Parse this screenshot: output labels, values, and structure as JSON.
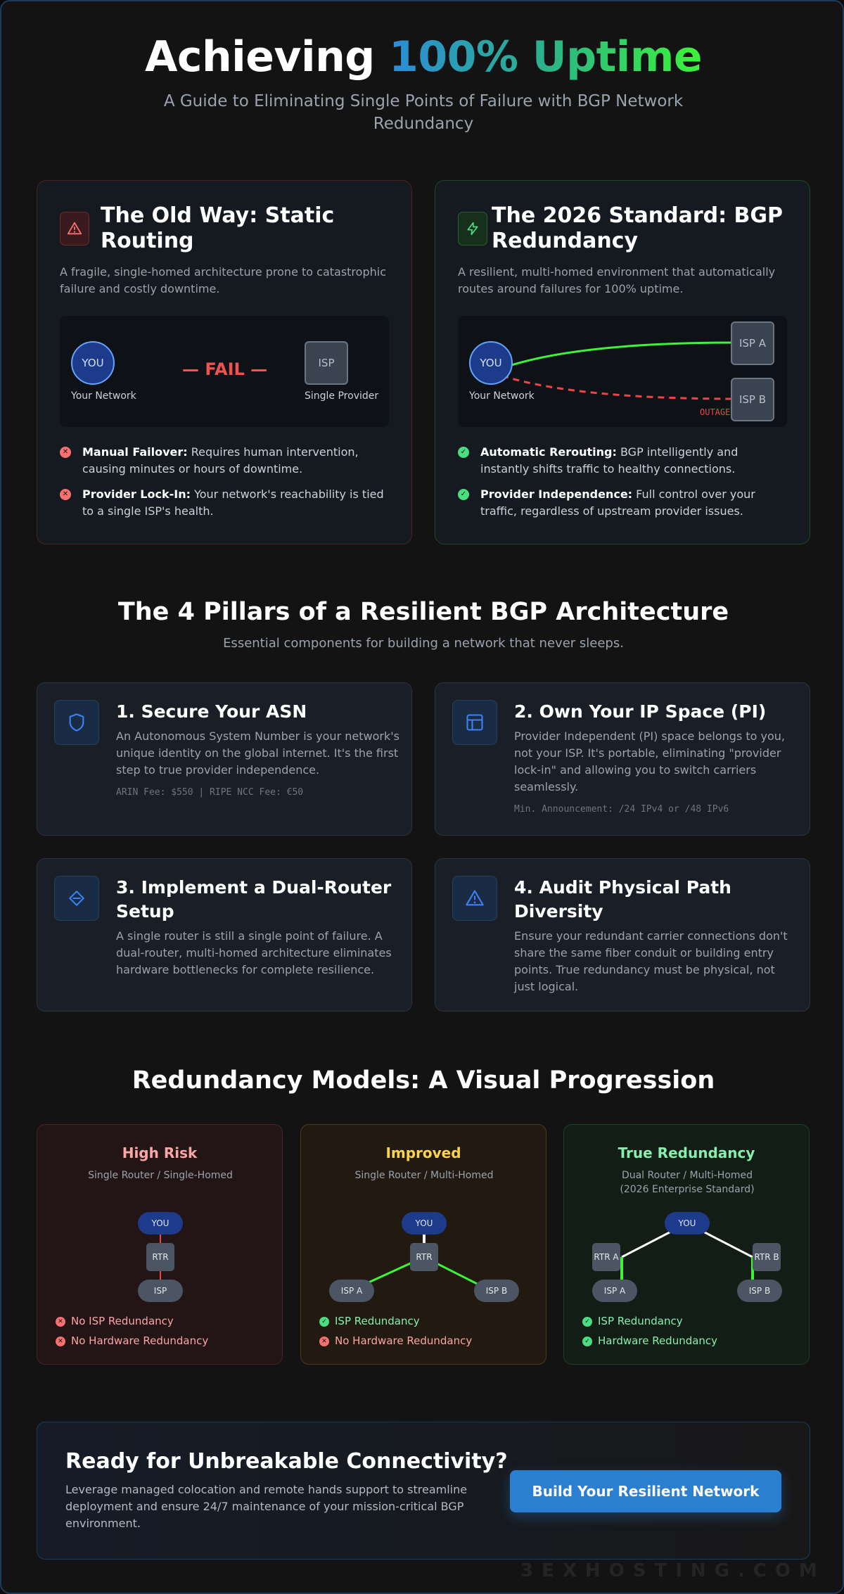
{
  "header": {
    "title_plain": "Achieving",
    "title_highlight": "100% Uptime",
    "subtitle": "A Guide to Eliminating Single Points of Failure with BGP Network Redundancy"
  },
  "comparison": {
    "old": {
      "icon": "warning-triangle-icon",
      "title": "The Old Way: Static Routing",
      "description": "A fragile, single-homed architecture prone to catastrophic failure and costly downtime.",
      "diagram": {
        "you_label": "YOU",
        "you_caption": "Your Network",
        "fail_label": "— FAIL —",
        "isp_label": "ISP",
        "isp_caption": "Single Provider"
      },
      "bullets": [
        {
          "title": "Manual Failover:",
          "text": " Requires human intervention, causing minutes or hours of downtime."
        },
        {
          "title": "Provider Lock-In:",
          "text": " Your network's reachability is tied to a single ISP's health."
        }
      ]
    },
    "new": {
      "icon": "lightning-bolt-icon",
      "title": "The 2026 Standard: BGP Redundancy",
      "description": "A resilient, multi-homed environment that automatically routes around failures for 100% uptime.",
      "diagram": {
        "you_label": "YOU",
        "you_caption": "Your Network",
        "isp_a_label": "ISP A",
        "isp_b_label": "ISP B",
        "outage_label": "OUTAGE"
      },
      "bullets": [
        {
          "title": "Automatic Rerouting:",
          "text": " BGP intelligently and instantly shifts traffic to healthy connections."
        },
        {
          "title": "Provider Independence:",
          "text": " Full control over your traffic, regardless of upstream provider issues."
        }
      ]
    }
  },
  "pillars": {
    "title": "The 4 Pillars of a Resilient BGP Architecture",
    "subtitle": "Essential components for building a network that never sleeps.",
    "items": [
      {
        "icon": "shield-icon",
        "title": "1. Secure Your ASN",
        "description": "An Autonomous System Number is your network's unique identity on the global internet. It's the first step to true provider independence.",
        "meta": "ARIN Fee: $550 | RIPE NCC Fee: €50"
      },
      {
        "icon": "layout-icon",
        "title": "2. Own Your IP Space (PI)",
        "description": "Provider Independent (PI) space belongs to you, not your ISP. It's portable, eliminating \"provider lock-in\" and allowing you to switch carriers seamlessly.",
        "meta": "Min. Announcement: /24 IPv4 or /48 IPv6"
      },
      {
        "icon": "diamond-router-icon",
        "title": "3. Implement a Dual-Router Setup",
        "description": "A single router is still a single point of failure. A dual-router, multi-homed architecture eliminates hardware bottlenecks for complete resilience.",
        "meta": ""
      },
      {
        "icon": "alert-triangle-icon",
        "title": "4. Audit Physical Path Diversity",
        "description": "Ensure your redundant carrier connections don't share the same fiber conduit or building entry points. True redundancy must be physical, not just logical.",
        "meta": ""
      }
    ]
  },
  "models": {
    "title": "Redundancy Models: A Visual Progression",
    "items": [
      {
        "title": "High Risk",
        "title_color": "#fca5a5",
        "subtitle": "Single Router / Single-Homed",
        "nodes": {
          "you": "YOU",
          "rtr": "RTR",
          "isp": "ISP"
        },
        "features": [
          {
            "ok": false,
            "text": "No ISP Redundancy"
          },
          {
            "ok": false,
            "text": "No Hardware Redundancy"
          }
        ]
      },
      {
        "title": "Improved",
        "title_color": "#fcd34d",
        "subtitle": "Single Router / Multi-Homed",
        "nodes": {
          "you": "YOU",
          "rtr": "RTR",
          "isp_a": "ISP A",
          "isp_b": "ISP B"
        },
        "features": [
          {
            "ok": true,
            "text": "ISP Redundancy"
          },
          {
            "ok": false,
            "text": "No Hardware Redundancy"
          }
        ]
      },
      {
        "title": "True Redundancy",
        "title_color": "#86efac",
        "subtitle_line1": "Dual Router / Multi-Homed",
        "subtitle_line2": "(2026 Enterprise Standard)",
        "nodes": {
          "you": "YOU",
          "rtr_a": "RTR A",
          "rtr_b": "RTR B",
          "isp_a": "ISP A",
          "isp_b": "ISP B"
        },
        "features": [
          {
            "ok": true,
            "text": "ISP Redundancy"
          },
          {
            "ok": true,
            "text": "Hardware Redundancy"
          }
        ]
      }
    ]
  },
  "cta": {
    "title": "Ready for Unbreakable Connectivity?",
    "description": "Leverage managed colocation and remote hands support to streamline deployment and ensure 24/7 maintenance of your mission-critical BGP environment.",
    "button": "Build Your Resilient Network"
  },
  "watermark": "3EXHOSTING.COM",
  "colors": {
    "accent_blue": "#2b7fd0",
    "success": "#4ade80",
    "danger": "#ef4444",
    "link_green": "#3cf33a"
  }
}
